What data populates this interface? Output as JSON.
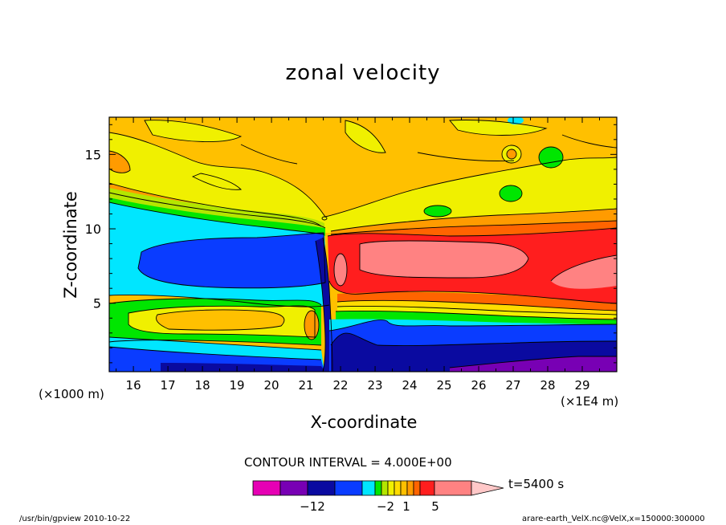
{
  "chart_data": {
    "type": "heatmap",
    "title": "zonal velocity",
    "xlabel": "X-coordinate",
    "ylabel": "Z-coordinate",
    "x_unit_left": "(×1000 m)",
    "x_unit_right": "(×1E4 m)",
    "x_ticks": [
      "16",
      "17",
      "18",
      "19",
      "20",
      "21",
      "22",
      "23",
      "24",
      "25",
      "26",
      "27",
      "28",
      "29"
    ],
    "y_ticks": [
      "5",
      "10",
      "15"
    ],
    "xlim": [
      15.3,
      30.0
    ],
    "ylim": [
      0.4,
      17.5
    ],
    "contour_interval": "CONTOUR INTERVAL = 4.000E+00",
    "time_label": "t=5400 s",
    "colorbar_labels": [
      "−12",
      "−2",
      "1",
      "5"
    ],
    "colorbar_colors": [
      "#e600b4",
      "#7800b4",
      "#0a0aa0",
      "#0a3cff",
      "#00e6ff",
      "#00e600",
      "#b4e600",
      "#f0f000",
      "#ffdc00",
      "#ffc000",
      "#ff9b00",
      "#ff6400",
      "#ff1e1e",
      "#ff8282",
      "#ffc8c8"
    ],
    "regions": [
      {
        "name": "upper-orange",
        "level": "ffc000",
        "value": 1
      },
      {
        "name": "yellow-band",
        "level": "f0f000",
        "value": 0.5
      },
      {
        "name": "mid-cyan",
        "level": "00e6ff",
        "value": -4
      },
      {
        "name": "left-blue-jet",
        "level": "0a3cff",
        "value": -8
      },
      {
        "name": "right-red-jet",
        "level": "ff1e1e",
        "value": 4
      },
      {
        "name": "jet-core-pink",
        "level": "ff8282",
        "value": 5
      },
      {
        "name": "lower-blue",
        "level": "0a0aa0",
        "value": -12
      },
      {
        "name": "bottom-purple",
        "level": "7800b4",
        "value": -16
      }
    ]
  },
  "footer": {
    "left": "/usr/bin/gpview   2010-10-22",
    "right": "arare-earth_VelX.nc@VelX,x=150000:300000"
  }
}
